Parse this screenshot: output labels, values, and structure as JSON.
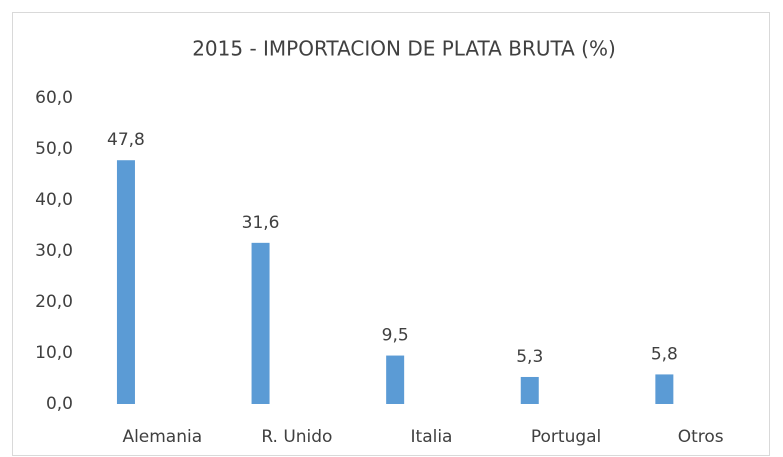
{
  "chart_data": {
    "type": "bar",
    "title": "2015 - IMPORTACION DE PLATA BRUTA (%)",
    "categories": [
      "Alemania",
      "R. Unido",
      "Italia",
      "Portugal",
      "Otros"
    ],
    "values": [
      47.8,
      31.6,
      9.5,
      5.3,
      5.8
    ],
    "value_labels": [
      "47,8",
      "31,6",
      "9,5",
      "5,3",
      "5,8"
    ],
    "color": "#5b9bd5",
    "ylim": [
      0,
      60
    ],
    "yticks": [
      {
        "value": 0,
        "label": "0,0"
      },
      {
        "value": 10,
        "label": "10,0"
      },
      {
        "value": 20,
        "label": "20,0"
      },
      {
        "value": 30,
        "label": "30,0"
      },
      {
        "value": 40,
        "label": "40,0"
      },
      {
        "value": 50,
        "label": "50,0"
      },
      {
        "value": 60,
        "label": "60,0"
      }
    ],
    "grid": false
  }
}
